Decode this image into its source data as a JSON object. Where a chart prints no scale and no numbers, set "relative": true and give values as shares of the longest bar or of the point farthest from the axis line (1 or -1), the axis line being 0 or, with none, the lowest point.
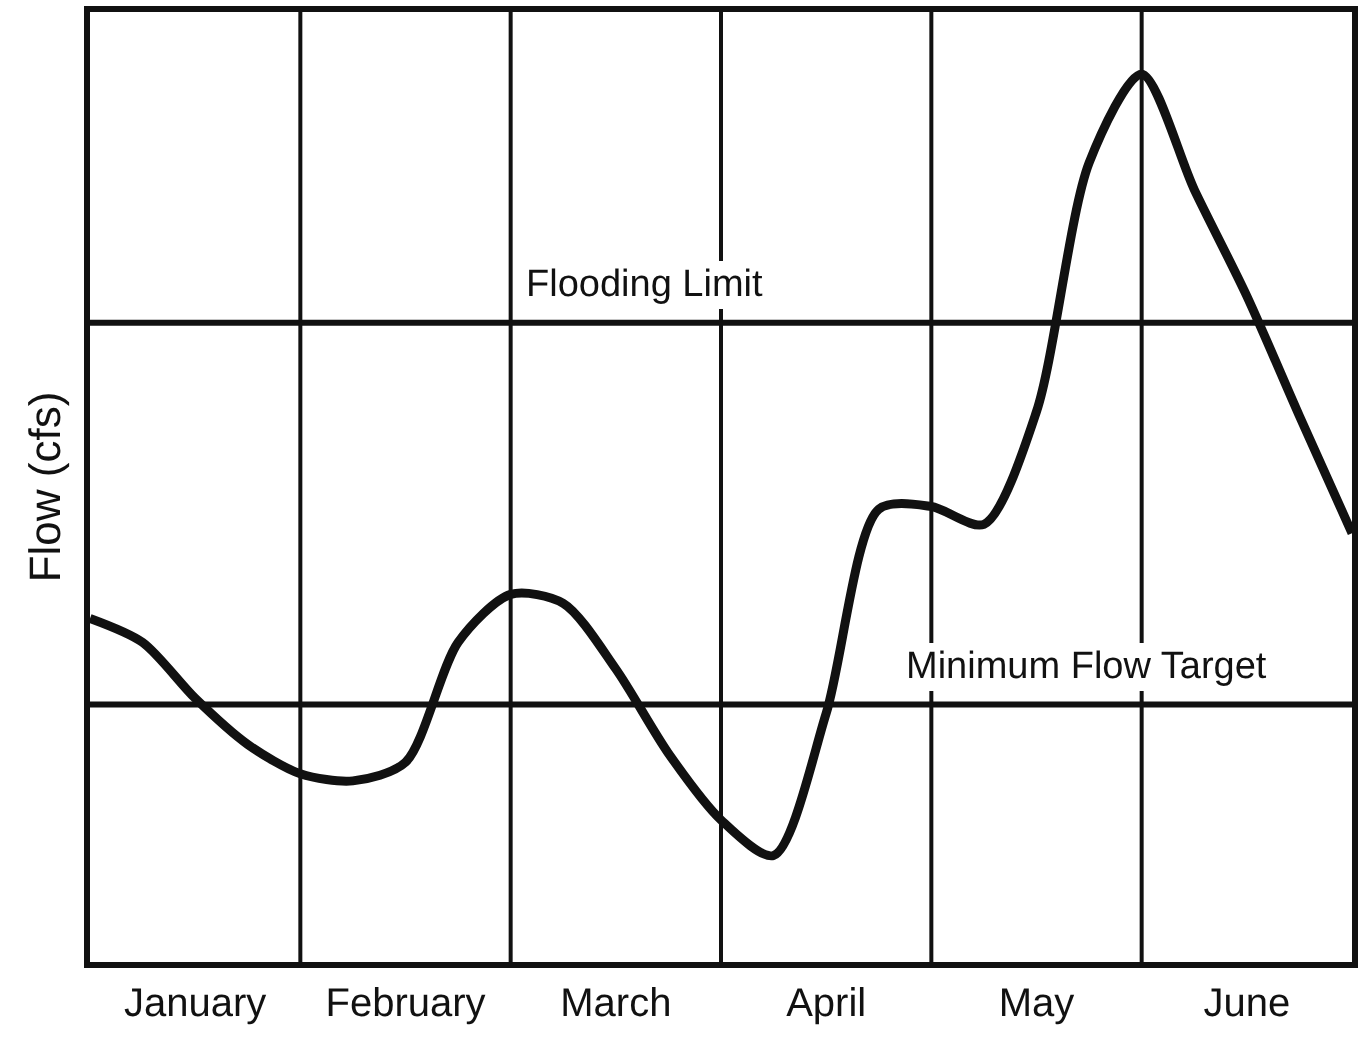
{
  "chart_data": {
    "type": "line",
    "relative": true,
    "ylabel": "Flow (cfs)",
    "categories": [
      null,
      null,
      "January",
      null,
      null,
      null,
      "February",
      null,
      null,
      null,
      "March",
      null,
      null,
      null,
      "April",
      null,
      null,
      null,
      "May",
      null,
      null,
      null,
      "June",
      null,
      null
    ],
    "series": [
      {
        "color": "#111111",
        "values": [
          0.387,
          0.36,
          0.297,
          0.245,
          0.212,
          0.204,
          0.225,
          0.36,
          0.414,
          0.404,
          0.33,
          0.235,
          0.16,
          0.12,
          0.28,
          0.51,
          0.513,
          0.493,
          0.62,
          0.9,
          1,
          0.87,
          0.75,
          0.615,
          0.483
        ]
      }
    ],
    "tick_labels": "x",
    "grid": "x",
    "marker": "none",
    "line_style": "solid",
    "ref_lines": [
      {
        "axis": "y",
        "value": 0.72,
        "label": "Flooding Limit"
      },
      {
        "axis": "y",
        "value": 0.29,
        "label": "Minimum Flow Target"
      }
    ]
  }
}
